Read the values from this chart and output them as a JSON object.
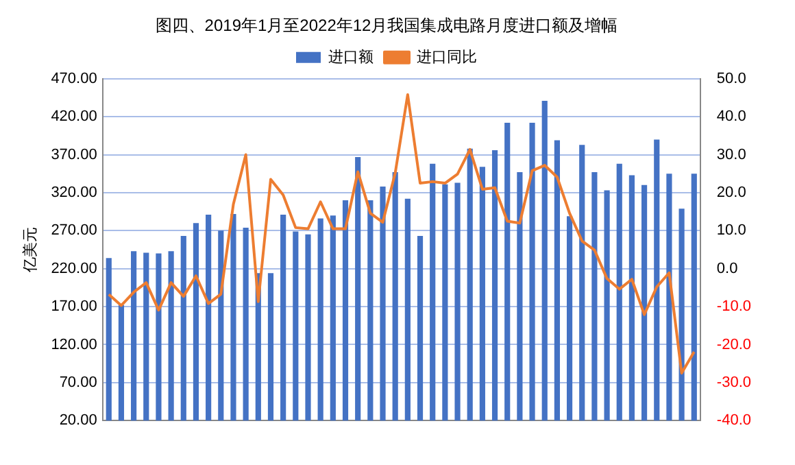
{
  "chart_data": {
    "type": "bar",
    "title": "图四、2019年1月至2022年12月我国集成电路月度进口额及增幅",
    "ylabel": "亿美元",
    "categories": [
      null,
      null,
      null,
      null,
      null,
      null,
      null,
      null,
      null,
      null,
      null,
      null,
      null,
      null,
      null,
      null,
      null,
      null,
      null,
      null,
      null,
      null,
      null,
      null,
      null,
      null,
      null,
      null,
      null,
      null,
      null,
      null,
      null,
      null,
      null,
      null,
      null,
      null,
      null,
      null,
      null,
      null,
      null,
      null,
      null,
      null,
      null,
      null
    ],
    "series": [
      {
        "name": "进口额",
        "color": "#4472c4",
        "values": [
          234,
          172,
          243,
          241,
          240,
          243,
          263,
          280,
          291,
          270,
          292,
          274,
          214,
          214,
          291,
          269,
          265,
          286,
          290,
          310,
          367,
          310,
          328,
          347,
          312,
          263,
          358,
          331,
          333,
          378,
          354,
          376,
          412,
          347,
          412,
          441,
          389,
          289,
          383,
          347,
          323,
          358,
          343,
          330,
          390,
          345,
          299,
          345
        ]
      },
      {
        "name": "进口同比",
        "type": "line",
        "axis": "y2",
        "color": "#ed7d31",
        "values": [
          -6.8,
          -9.7,
          -6.2,
          -3.7,
          -10.9,
          -3.7,
          -7.3,
          -1.9,
          -9.2,
          -6.7,
          16.9,
          30.0,
          -8.7,
          23.5,
          19.4,
          10.8,
          10.5,
          17.6,
          10.5,
          10.5,
          25.5,
          14.6,
          12.2,
          25.2,
          45.8,
          22.5,
          22.9,
          22.5,
          24.9,
          31.4,
          20.9,
          21.3,
          12.5,
          12.0,
          25.8,
          27.2,
          24.1,
          14.6,
          7.3,
          4.9,
          -2.6,
          -5.4,
          -2.8,
          -12.1,
          -4.8,
          -1.1,
          -27.5,
          -21.9
        ]
      }
    ],
    "ylim": [
      20,
      470
    ],
    "yticks": [
      {
        "value": 20,
        "label": "20.00"
      },
      {
        "value": 70,
        "label": "70.00"
      },
      {
        "value": 120,
        "label": "120.00"
      },
      {
        "value": 170,
        "label": "170.00"
      },
      {
        "value": 220,
        "label": "220.00"
      },
      {
        "value": 270,
        "label": "270.00"
      },
      {
        "value": 320,
        "label": "320.00"
      },
      {
        "value": 370,
        "label": "370.00"
      },
      {
        "value": 420,
        "label": "420.00"
      },
      {
        "value": 470,
        "label": "470.00"
      }
    ],
    "y2lim": [
      -40,
      50
    ],
    "y2ticks": [
      {
        "value": -40,
        "label": "-40.0"
      },
      {
        "value": -30,
        "label": "-30.0"
      },
      {
        "value": -20,
        "label": "-20.0"
      },
      {
        "value": -10,
        "label": "-10.0"
      },
      {
        "value": 0,
        "label": "0.0"
      },
      {
        "value": 10,
        "label": "10.0"
      },
      {
        "value": 20,
        "label": "20.0"
      },
      {
        "value": 30,
        "label": "30.0"
      },
      {
        "value": 40,
        "label": "40.0"
      },
      {
        "value": 50,
        "label": "50.0"
      }
    ],
    "grid": "y",
    "legend": "top",
    "marker": "none",
    "line_style": "solid"
  }
}
